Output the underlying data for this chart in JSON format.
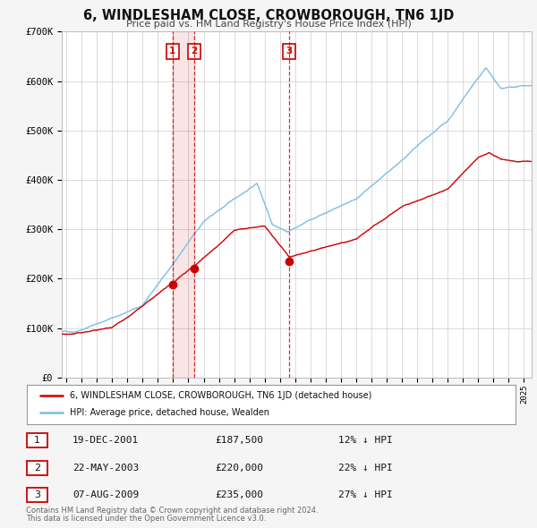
{
  "title": "6, WINDLESHAM CLOSE, CROWBOROUGH, TN6 1JD",
  "subtitle": "Price paid vs. HM Land Registry's House Price Index (HPI)",
  "ylim": [
    0,
    700000
  ],
  "yticks": [
    0,
    100000,
    200000,
    300000,
    400000,
    500000,
    600000,
    700000
  ],
  "ytick_labels": [
    "£0",
    "£100K",
    "£200K",
    "£300K",
    "£400K",
    "£500K",
    "£600K",
    "£700K"
  ],
  "xlim_start": 1994.7,
  "xlim_end": 2025.5,
  "background_color": "#f5f5f5",
  "plot_bg_color": "#ffffff",
  "grid_color": "#cccccc",
  "hpi_line_color": "#7bbde8",
  "price_line_color": "#cc0000",
  "vline_color": "#cc0000",
  "transactions": [
    {
      "num": "1",
      "date_str": "19-DEC-2001",
      "date_x": 2001.97,
      "price": 187500
    },
    {
      "num": "2",
      "date_str": "22-MAY-2003",
      "date_x": 2003.39,
      "price": 220000
    },
    {
      "num": "3",
      "date_str": "07-AUG-2009",
      "date_x": 2009.6,
      "price": 235000
    }
  ],
  "legend_line1": "6, WINDLESHAM CLOSE, CROWBOROUGH, TN6 1JD (detached house)",
  "legend_line2": "HPI: Average price, detached house, Wealden",
  "footer_line1": "Contains HM Land Registry data © Crown copyright and database right 2024.",
  "footer_line2": "This data is licensed under the Open Government Licence v3.0.",
  "table_rows": [
    {
      "num": "1",
      "date": "19-DEC-2001",
      "price": "£187,500",
      "pct": "12% ↓ HPI"
    },
    {
      "num": "2",
      "date": "22-MAY-2003",
      "price": "£220,000",
      "pct": "22% ↓ HPI"
    },
    {
      "num": "3",
      "date": "07-AUG-2009",
      "price": "£235,000",
      "pct": "27% ↓ HPI"
    }
  ]
}
